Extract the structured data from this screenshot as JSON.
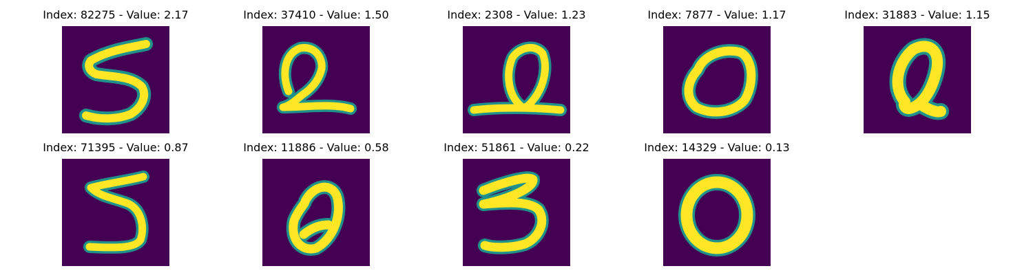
{
  "figure": {
    "panels": [
      {
        "title": "Index: 82275 - Value: 2.17",
        "digit": "5"
      },
      {
        "title": "Index: 37410 - Value: 1.50",
        "digit": "2"
      },
      {
        "title": "Index: 2308 - Value: 1.23",
        "digit": "2"
      },
      {
        "title": "Index: 7877 - Value: 1.17",
        "digit": "0"
      },
      {
        "title": "Index: 31883 - Value: 1.15",
        "digit": "0"
      },
      {
        "title": "Index: 71395 - Value: 0.87",
        "digit": "5"
      },
      {
        "title": "Index: 11886 - Value: 0.58",
        "digit": "0"
      },
      {
        "title": "Index: 51861 - Value: 0.22",
        "digit": "3"
      },
      {
        "title": "Index: 14329 - Value: 0.13",
        "digit": "0"
      }
    ],
    "colors": {
      "background": "#440154",
      "glow": "#21918c",
      "stroke": "#fde725"
    },
    "colormap": "viridis"
  }
}
